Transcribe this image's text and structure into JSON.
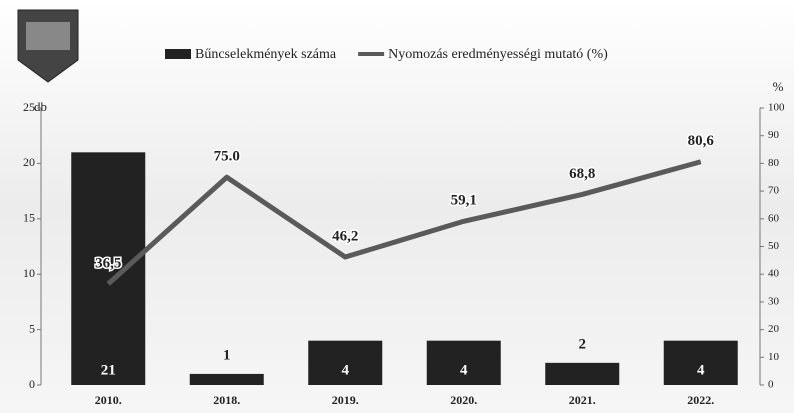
{
  "chart_data": {
    "type": "combo",
    "categories": [
      "2010.",
      "2018.",
      "2019.",
      "2020.",
      "2021.",
      "2022."
    ],
    "series": [
      {
        "name": "Bűncselekmények száma",
        "type": "bar",
        "color": "#222222",
        "values": [
          21,
          1,
          4,
          4,
          2,
          4
        ]
      },
      {
        "name": "Nyomozás eredményességi mutató (%)",
        "type": "line",
        "axis": "y2",
        "color": "#5a5a5a",
        "values": [
          36.5,
          75.0,
          46.2,
          59.1,
          68.8,
          80.6
        ],
        "value_labels": [
          "36,5",
          "75.0",
          "46,2",
          "59,1",
          "68,8",
          "80,6"
        ]
      }
    ],
    "y_label": "db",
    "y2_label": "%",
    "ylim": [
      0,
      25
    ],
    "yticks": [
      0,
      5,
      10,
      15,
      20,
      25
    ],
    "y2lim": [
      0,
      100
    ],
    "y2ticks": [
      0,
      10,
      20,
      30,
      40,
      50,
      60,
      70,
      80,
      90,
      100
    ]
  }
}
